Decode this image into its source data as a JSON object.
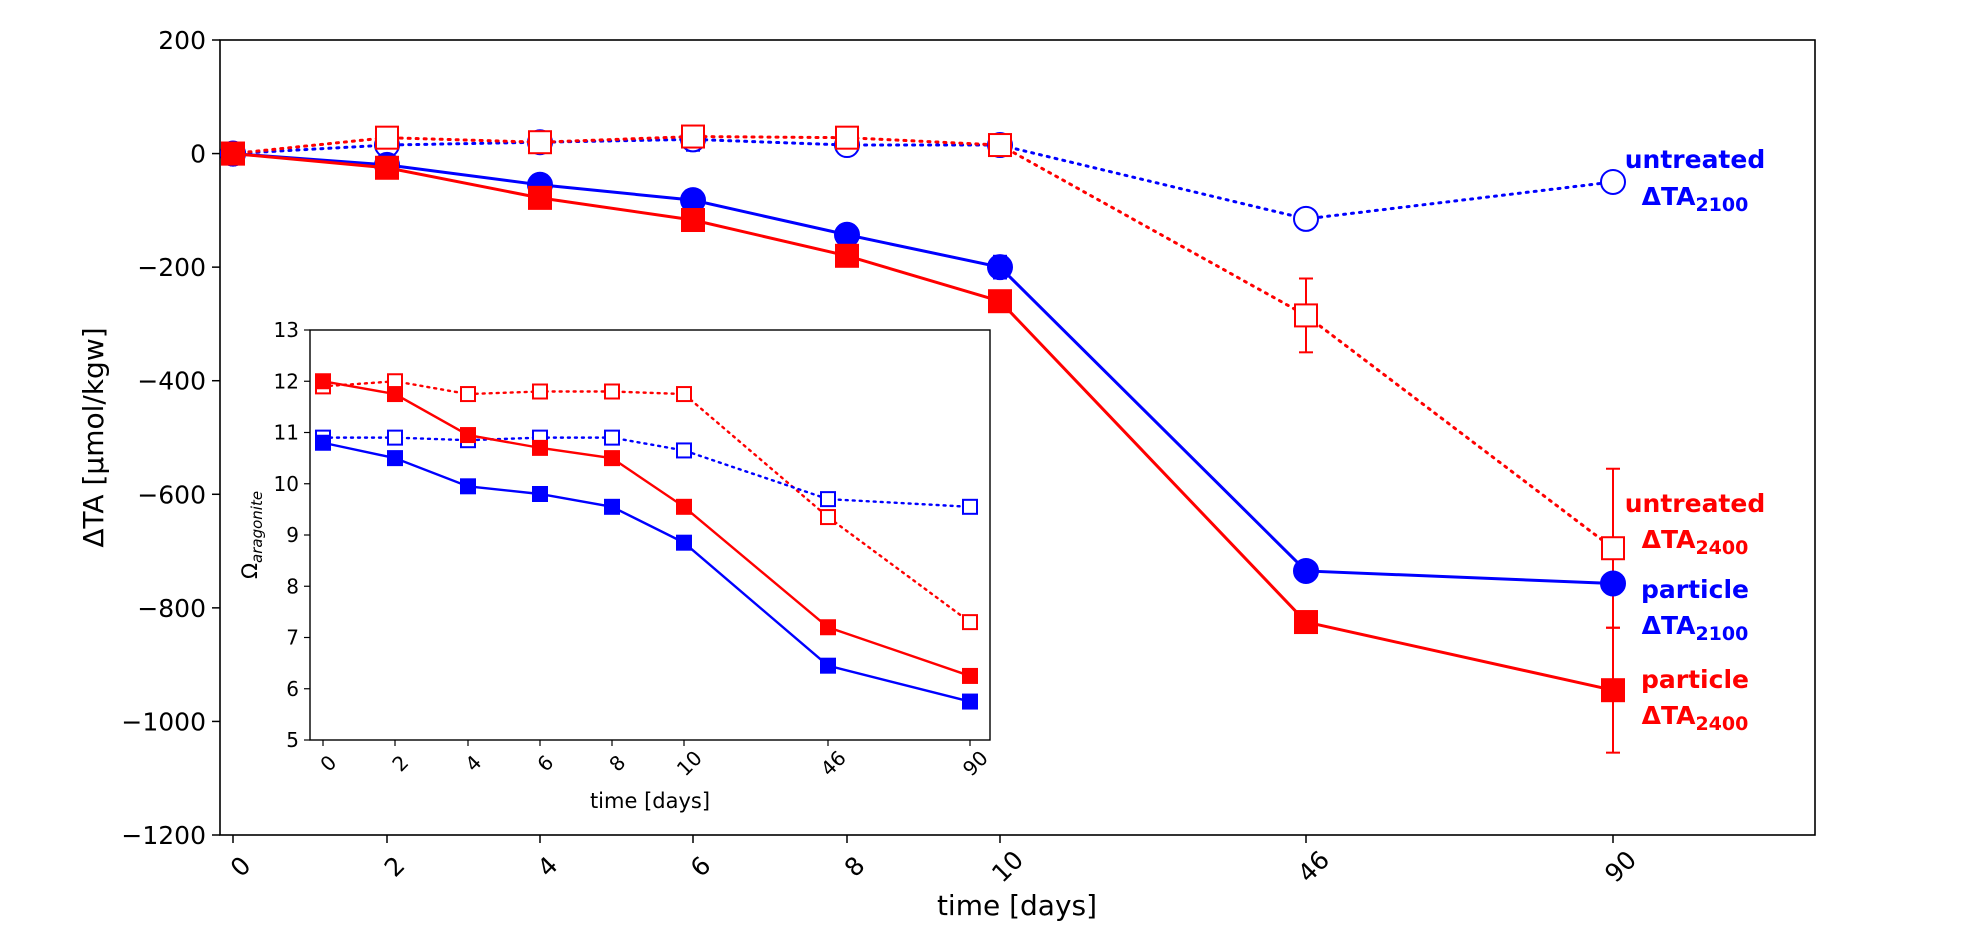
{
  "chart_data": [
    {
      "type": "line",
      "title": "",
      "xlabel": "time [days]",
      "ylabel": "ΔTA [µmol/kgw]",
      "categories": [
        "0",
        "2",
        "4",
        "6",
        "8",
        "10",
        "46",
        "90"
      ],
      "yticks": [
        "200",
        "0",
        "−200",
        "−400",
        "−600",
        "−800",
        "−1000",
        "−1200"
      ],
      "ylim": [
        -1200,
        200
      ],
      "grid": false,
      "series": [
        {
          "name": "untreated ΔTA2100",
          "label": "untreated",
          "label_sub": "ΔTA",
          "label_subscript": "2100",
          "color": "#0000ff",
          "marker": "circle",
          "filled": false,
          "linestyle": "dotted",
          "values": [
            0,
            15,
            20,
            25,
            15,
            15,
            -115,
            -50
          ],
          "errors": [
            0,
            0,
            5,
            20,
            0,
            5,
            0,
            0
          ]
        },
        {
          "name": "untreated ΔTA2400",
          "label": "untreated",
          "label_sub": "ΔTA",
          "label_subscript": "2400",
          "color": "#ff0000",
          "marker": "square",
          "filled": false,
          "linestyle": "dotted",
          "values": [
            0,
            28,
            20,
            30,
            28,
            15,
            -285,
            -695
          ],
          "errors": [
            0,
            0,
            5,
            10,
            0,
            5,
            65,
            140
          ]
        },
        {
          "name": "particle ΔTA2100",
          "label": "particle",
          "label_sub": "ΔTA",
          "label_subscript": "2100",
          "color": "#0000ff",
          "marker": "circle",
          "filled": true,
          "linestyle": "solid",
          "values": [
            0,
            -20,
            -55,
            -82,
            -143,
            -200,
            -735,
            -757
          ],
          "errors": [
            0,
            0,
            0,
            0,
            15,
            20,
            15,
            0
          ]
        },
        {
          "name": "particle ΔTA2400",
          "label": "particle",
          "label_sub": "ΔTA",
          "label_subscript": "2400",
          "color": "#ff0000",
          "marker": "square",
          "filled": true,
          "linestyle": "solid",
          "values": [
            0,
            -25,
            -78,
            -117,
            -180,
            -260,
            -825,
            -945
          ],
          "errors": [
            0,
            0,
            0,
            0,
            0,
            0,
            0,
            110
          ]
        }
      ]
    },
    {
      "type": "line",
      "title": "",
      "xlabel": "time [days]",
      "ylabel": "Ωaragonite",
      "ylabel_main": "Ω",
      "ylabel_sub": "aragonite",
      "categories": [
        "0",
        "2",
        "4",
        "6",
        "8",
        "10",
        "46",
        "90"
      ],
      "yticks": [
        "13",
        "12",
        "11",
        "10",
        "9",
        "8",
        "7",
        "6",
        "5"
      ],
      "ylim": [
        5,
        13
      ],
      "grid": false,
      "series": [
        {
          "color": "#ff0000",
          "marker": "square",
          "filled": false,
          "linestyle": "dotted",
          "values": [
            11.9,
            12.0,
            11.75,
            11.8,
            11.8,
            11.75,
            9.35,
            7.3
          ]
        },
        {
          "color": "#0000ff",
          "marker": "square",
          "filled": false,
          "linestyle": "dotted",
          "values": [
            10.9,
            10.9,
            10.85,
            10.9,
            10.9,
            10.65,
            9.7,
            9.55
          ]
        },
        {
          "color": "#ff0000",
          "marker": "square",
          "filled": true,
          "linestyle": "solid",
          "values": [
            12.0,
            11.75,
            10.95,
            10.7,
            10.5,
            9.55,
            7.2,
            6.25
          ]
        },
        {
          "color": "#0000ff",
          "marker": "square",
          "filled": true,
          "linestyle": "solid",
          "values": [
            10.8,
            10.5,
            9.95,
            9.8,
            9.55,
            8.85,
            6.45,
            5.75
          ]
        }
      ]
    }
  ]
}
